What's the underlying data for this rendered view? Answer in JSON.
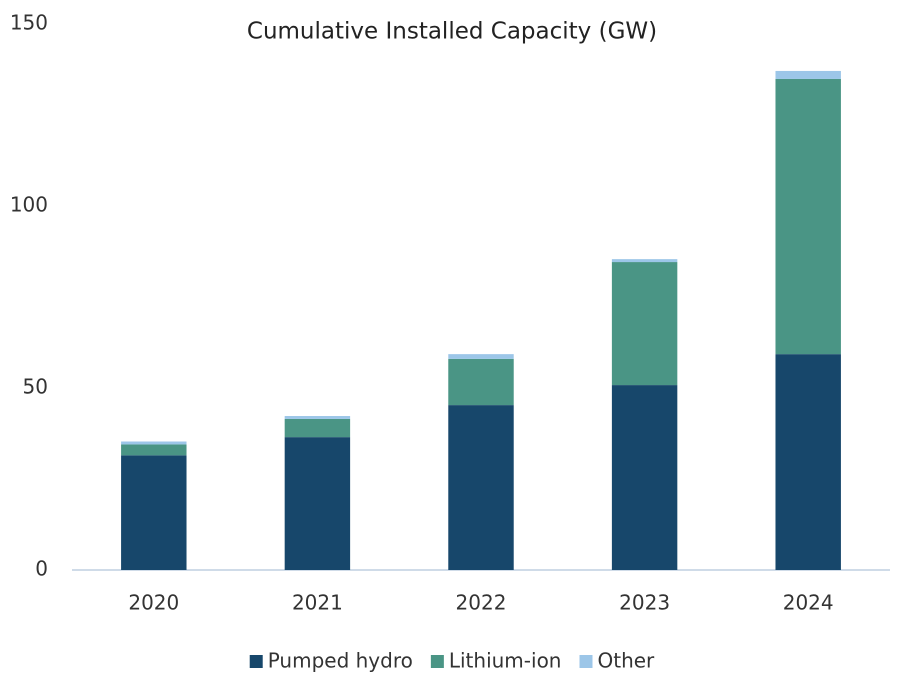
{
  "chart_data": {
    "type": "stacked_bar",
    "title": "Cumulative Installed Capacity (GW)",
    "categories": [
      "2020",
      "2021",
      "2022",
      "2023",
      "2024"
    ],
    "series": [
      {
        "name": "Pumped hydro",
        "color": "#17476b",
        "values": [
          31.5,
          36.5,
          45.3,
          50.8,
          59.3
        ]
      },
      {
        "name": "Lithium-ion",
        "color": "#4a9585",
        "values": [
          3,
          5,
          12.7,
          33.8,
          75.6
        ]
      },
      {
        "name": "Other",
        "color": "#9cc6e8",
        "values": [
          0.8,
          0.8,
          1.3,
          0.8,
          2.2
        ]
      }
    ],
    "ylim": [
      0,
      150
    ],
    "yticks": [
      0,
      50,
      100,
      150
    ],
    "grid": false,
    "legend": "bottom"
  }
}
